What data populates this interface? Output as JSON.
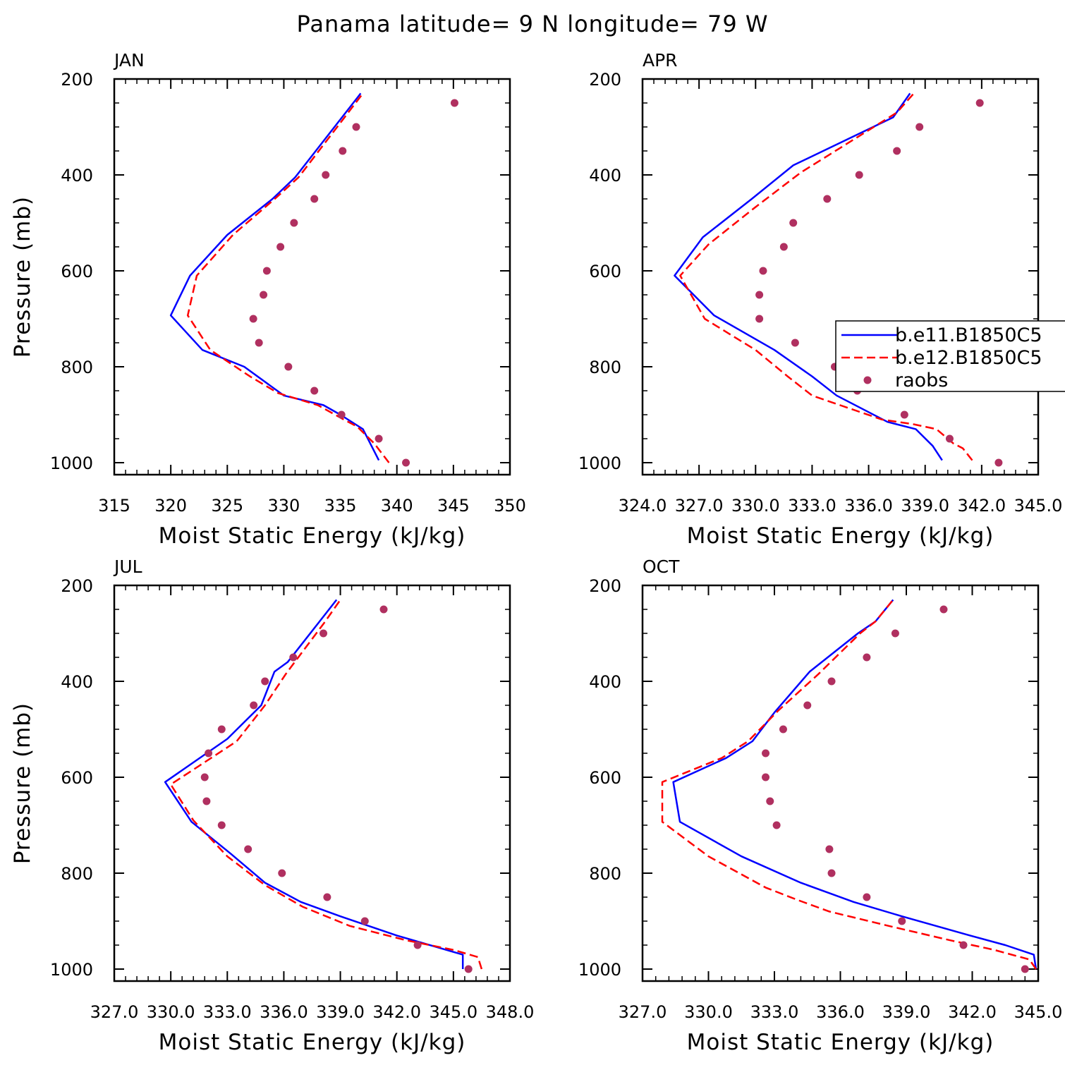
{
  "figure_title": "Panama  latitude= 9 N longitude= 79 W",
  "colors": {
    "b.e11.B1850C5": "#0000ff",
    "b.e12.B1850C5": "#ff0000",
    "raobs": "#b03060"
  },
  "legend": {
    "entries": [
      "b.e11.B1850C5",
      "b.e12.B1850C5",
      "raobs"
    ],
    "placement": "APR panel, right side"
  },
  "chart_data": [
    {
      "type": "line",
      "title": "JAN",
      "xlabel": "Moist Static Energy (kJ/kg)",
      "ylabel": "Pressure (mb)",
      "xlim": [
        315,
        350
      ],
      "ylim": [
        1000,
        200
      ],
      "xticks": [
        "315",
        "320",
        "325",
        "330",
        "335",
        "340",
        "345",
        "350"
      ],
      "yticks": [
        "200",
        "400",
        "600",
        "800",
        "1000"
      ],
      "series": [
        {
          "name": "b.e11.B1850C5",
          "style": "solid",
          "points": [
            [
              338.4,
              995
            ],
            [
              337.0,
              930
            ],
            [
              335.0,
              900
            ],
            [
              333.5,
              880
            ],
            [
              330.0,
              860
            ],
            [
              326.5,
              800
            ],
            [
              322.8,
              765
            ],
            [
              320.0,
              693
            ],
            [
              321.7,
              610
            ],
            [
              325.0,
              525
            ],
            [
              329.0,
              450
            ],
            [
              331.0,
              405
            ],
            [
              336.8,
              230
            ]
          ]
        },
        {
          "name": "b.e12.B1850C5",
          "style": "dashed",
          "points": [
            [
              339.3,
              1000
            ],
            [
              338.0,
              960
            ],
            [
              336.5,
              925
            ],
            [
              335.3,
              910
            ],
            [
              333.0,
              880
            ],
            [
              329.5,
              855
            ],
            [
              327.0,
              820
            ],
            [
              323.5,
              765
            ],
            [
              321.5,
              693
            ],
            [
              322.3,
              610
            ],
            [
              325.5,
              525
            ],
            [
              329.2,
              450
            ],
            [
              331.3,
              405
            ],
            [
              337.0,
              230
            ]
          ]
        },
        {
          "name": "raobs",
          "style": "markers",
          "points": [
            [
              345.1,
              250
            ],
            [
              336.4,
              300
            ],
            [
              335.2,
              350
            ],
            [
              333.7,
              400
            ],
            [
              332.7,
              450
            ],
            [
              330.9,
              500
            ],
            [
              329.7,
              550
            ],
            [
              328.5,
              600
            ],
            [
              328.2,
              650
            ],
            [
              327.3,
              700
            ],
            [
              327.8,
              750
            ],
            [
              330.4,
              800
            ],
            [
              332.7,
              850
            ],
            [
              335.1,
              900
            ],
            [
              338.4,
              950
            ],
            [
              340.8,
              1000
            ]
          ]
        }
      ]
    },
    {
      "type": "line",
      "title": "APR",
      "xlabel": "Moist Static Energy (kJ/kg)",
      "ylabel": "",
      "xlim": [
        324.0,
        345.0
      ],
      "ylim": [
        1000,
        200
      ],
      "xticks": [
        "324.0",
        "327.0",
        "330.0",
        "333.0",
        "336.0",
        "339.0",
        "342.0",
        "345.0"
      ],
      "yticks": [
        "200",
        "400",
        "600",
        "800",
        "1000"
      ],
      "series": [
        {
          "name": "b.e11.B1850C5",
          "style": "solid",
          "points": [
            [
              339.9,
              995
            ],
            [
              339.4,
              965
            ],
            [
              338.5,
              930
            ],
            [
              337.0,
              915
            ],
            [
              334.3,
              860
            ],
            [
              333.0,
              820
            ],
            [
              331.0,
              765
            ],
            [
              327.8,
              693
            ],
            [
              325.7,
              610
            ],
            [
              327.2,
              530
            ],
            [
              329.8,
              450
            ],
            [
              332.0,
              380
            ],
            [
              337.3,
              280
            ],
            [
              338.2,
              230
            ]
          ]
        },
        {
          "name": "b.e12.B1850C5",
          "style": "dashed",
          "points": [
            [
              341.5,
              995
            ],
            [
              341.0,
              970
            ],
            [
              340.5,
              960
            ],
            [
              339.6,
              930
            ],
            [
              338.4,
              920
            ],
            [
              336.7,
              910
            ],
            [
              333.0,
              860
            ],
            [
              331.7,
              820
            ],
            [
              330.0,
              765
            ],
            [
              327.3,
              700
            ],
            [
              326.0,
              610
            ],
            [
              327.5,
              545
            ],
            [
              329.9,
              470
            ],
            [
              332.4,
              395
            ],
            [
              337.5,
              270
            ],
            [
              338.4,
              230
            ]
          ]
        },
        {
          "name": "raobs",
          "style": "markers",
          "points": [
            [
              341.9,
              250
            ],
            [
              338.7,
              300
            ],
            [
              337.5,
              350
            ],
            [
              335.5,
              400
            ],
            [
              333.8,
              450
            ],
            [
              332.0,
              500
            ],
            [
              331.5,
              550
            ],
            [
              330.4,
              600
            ],
            [
              330.2,
              650
            ],
            [
              330.2,
              700
            ],
            [
              332.1,
              750
            ],
            [
              334.2,
              800
            ],
            [
              335.4,
              850
            ],
            [
              337.9,
              900
            ],
            [
              340.3,
              950
            ],
            [
              342.9,
              1000
            ]
          ]
        }
      ]
    },
    {
      "type": "line",
      "title": "JUL",
      "xlabel": "Moist Static Energy (kJ/kg)",
      "ylabel": "Pressure (mb)",
      "xlim": [
        327.0,
        348.0
      ],
      "ylim": [
        1000,
        200
      ],
      "xticks": [
        "327.0",
        "330.0",
        "333.0",
        "336.0",
        "339.0",
        "342.0",
        "345.0",
        "348.0"
      ],
      "yticks": [
        "200",
        "400",
        "600",
        "800",
        "1000"
      ],
      "series": [
        {
          "name": "b.e11.B1850C5",
          "style": "solid",
          "points": [
            [
              345.5,
              1000
            ],
            [
              345.5,
              970
            ],
            [
              342.0,
              930
            ],
            [
              339.0,
              890
            ],
            [
              336.9,
              860
            ],
            [
              335.0,
              820
            ],
            [
              333.2,
              760
            ],
            [
              331.1,
              693
            ],
            [
              329.7,
              610
            ],
            [
              333.0,
              520
            ],
            [
              334.8,
              450
            ],
            [
              335.5,
              380
            ],
            [
              336.2,
              360
            ],
            [
              337.9,
              275
            ],
            [
              338.8,
              230
            ]
          ]
        },
        {
          "name": "b.e12.B1850C5",
          "style": "dashed",
          "points": [
            [
              346.5,
              1000
            ],
            [
              346.3,
              975
            ],
            [
              345.0,
              960
            ],
            [
              342.5,
              940
            ],
            [
              339.5,
              910
            ],
            [
              337.0,
              870
            ],
            [
              335.0,
              825
            ],
            [
              333.0,
              765
            ],
            [
              331.2,
              690
            ],
            [
              330.0,
              615
            ],
            [
              333.5,
              525
            ],
            [
              335.0,
              450
            ],
            [
              336.1,
              385
            ],
            [
              338.2,
              275
            ],
            [
              339.0,
              230
            ]
          ]
        },
        {
          "name": "raobs",
          "style": "markers",
          "points": [
            [
              341.3,
              250
            ],
            [
              338.1,
              300
            ],
            [
              336.5,
              350
            ],
            [
              335.0,
              400
            ],
            [
              334.4,
              450
            ],
            [
              332.7,
              500
            ],
            [
              332.0,
              550
            ],
            [
              331.8,
              600
            ],
            [
              331.9,
              650
            ],
            [
              332.7,
              700
            ],
            [
              334.1,
              750
            ],
            [
              335.9,
              800
            ],
            [
              338.3,
              850
            ],
            [
              340.3,
              900
            ],
            [
              343.1,
              950
            ],
            [
              345.8,
              1000
            ]
          ]
        }
      ]
    },
    {
      "type": "line",
      "title": "OCT",
      "xlabel": "Moist Static Energy (kJ/kg)",
      "ylabel": "",
      "xlim": [
        327.0,
        345.0
      ],
      "ylim": [
        1000,
        200
      ],
      "xticks": [
        "327.0",
        "330.0",
        "333.0",
        "336.0",
        "339.0",
        "342.0",
        "345.0"
      ],
      "yticks": [
        "200",
        "400",
        "600",
        "800",
        "1000"
      ],
      "series": [
        {
          "name": "b.e11.B1850C5",
          "style": "solid",
          "points": [
            [
              344.9,
              1000
            ],
            [
              344.8,
              970
            ],
            [
              343.5,
              950
            ],
            [
              341.9,
              930
            ],
            [
              338.8,
              890
            ],
            [
              336.6,
              860
            ],
            [
              334.2,
              820
            ],
            [
              331.5,
              765
            ],
            [
              328.7,
              693
            ],
            [
              328.4,
              610
            ],
            [
              330.8,
              560
            ],
            [
              332.0,
              525
            ],
            [
              333.0,
              465
            ],
            [
              334.6,
              380
            ],
            [
              336.8,
              300
            ],
            [
              337.6,
              275
            ],
            [
              338.4,
              230
            ]
          ]
        },
        {
          "name": "b.e12.B1850C5",
          "style": "dashed",
          "points": [
            [
              344.9,
              1000
            ],
            [
              344.6,
              980
            ],
            [
              343.0,
              960
            ],
            [
              341.0,
              940
            ],
            [
              338.2,
              910
            ],
            [
              335.5,
              880
            ],
            [
              334.0,
              855
            ],
            [
              332.6,
              830
            ],
            [
              330.0,
              765
            ],
            [
              327.9,
              693
            ],
            [
              327.9,
              610
            ],
            [
              330.6,
              560
            ],
            [
              331.8,
              525
            ],
            [
              333.2,
              460
            ],
            [
              335.0,
              385
            ],
            [
              336.9,
              300
            ],
            [
              337.6,
              275
            ],
            [
              338.4,
              230
            ]
          ]
        },
        {
          "name": "raobs",
          "style": "markers",
          "points": [
            [
              340.7,
              250
            ],
            [
              338.5,
              300
            ],
            [
              337.2,
              350
            ],
            [
              335.6,
              400
            ],
            [
              334.5,
              450
            ],
            [
              333.4,
              500
            ],
            [
              332.6,
              550
            ],
            [
              332.6,
              600
            ],
            [
              332.8,
              650
            ],
            [
              333.1,
              700
            ],
            [
              335.5,
              750
            ],
            [
              335.6,
              800
            ],
            [
              337.2,
              850
            ],
            [
              338.8,
              900
            ],
            [
              341.6,
              950
            ],
            [
              344.4,
              1000
            ]
          ]
        }
      ]
    }
  ]
}
